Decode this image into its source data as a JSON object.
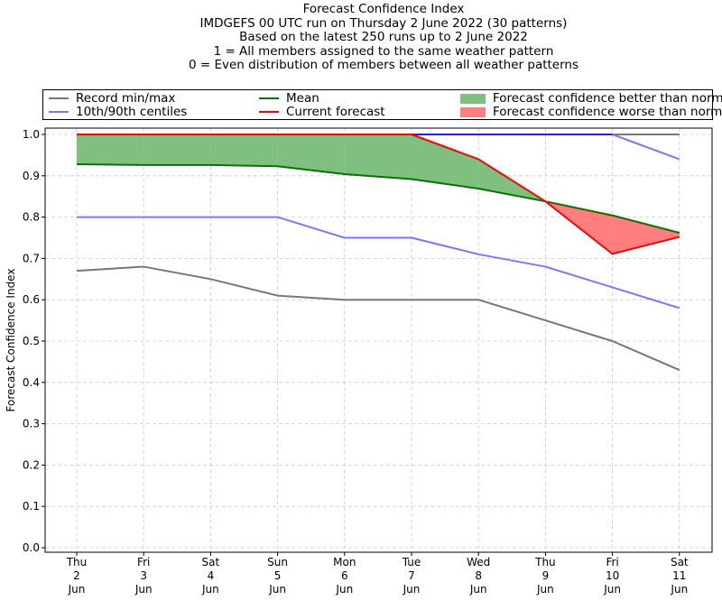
{
  "chart_data": {
    "type": "line",
    "title_lines": [
      "Forecast Confidence Index",
      "IMDGEFS 00 UTC run on Thursday 2 June 2022 (30 patterns)",
      "Based on the latest 250 runs up to 2 June 2022",
      "1 = All members assigned to the same weather pattern",
      "0 = Even distribution of members between all weather patterns"
    ],
    "ylabel": "Forecast Confidence Index",
    "ylim": [
      0,
      1
    ],
    "yticks": [
      "0.0",
      "0.1",
      "0.2",
      "0.3",
      "0.4",
      "0.5",
      "0.6",
      "0.7",
      "0.8",
      "0.9",
      "1.0"
    ],
    "grid": true,
    "legend_position": "top",
    "categories": [
      [
        "Thu",
        "2",
        "Jun"
      ],
      [
        "Fri",
        "3",
        "Jun"
      ],
      [
        "Sat",
        "4",
        "Jun"
      ],
      [
        "Sun",
        "5",
        "Jun"
      ],
      [
        "Mon",
        "6",
        "Jun"
      ],
      [
        "Tue",
        "7",
        "Jun"
      ],
      [
        "Wed",
        "8",
        "Jun"
      ],
      [
        "Thu",
        "9",
        "Jun"
      ],
      [
        "Fri",
        "10",
        "Jun"
      ],
      [
        "Sat",
        "11",
        "Jun"
      ]
    ],
    "series": {
      "record_min": [
        0.67,
        0.68,
        0.65,
        0.61,
        0.6,
        0.6,
        0.6,
        0.55,
        0.5,
        0.43
      ],
      "record_max": [
        1.0,
        1.0,
        1.0,
        1.0,
        1.0,
        1.0,
        1.0,
        1.0,
        1.0,
        1.0
      ],
      "centile_10": [
        0.8,
        0.8,
        0.8,
        0.8,
        0.75,
        0.75,
        0.71,
        0.68,
        0.63,
        0.58
      ],
      "centile_90": [
        1.0,
        1.0,
        1.0,
        1.0,
        1.0,
        1.0,
        1.0,
        1.0,
        1.0,
        0.94
      ],
      "mean": [
        0.928,
        0.926,
        0.926,
        0.923,
        0.904,
        0.892,
        0.869,
        0.838,
        0.804,
        0.762
      ],
      "current": [
        1.0,
        1.0,
        1.0,
        1.0,
        1.0,
        1.0,
        0.94,
        0.838,
        0.711,
        0.752
      ]
    },
    "legend": {
      "record": "Record min/max",
      "centiles": "10th/90th centiles",
      "mean": "Mean",
      "current": "Current forecast",
      "better": "Forecast confidence better than normal",
      "worse": "Forecast confidence worse than normal"
    },
    "colors": {
      "record": "#777777",
      "centile": "#7777ff",
      "centile_top": "#2222dd",
      "mean": "#007700",
      "current": "#ff0000",
      "better_fill": "#7fbf7f",
      "worse_fill": "#ff7f7f",
      "grid": "#cccccc"
    }
  }
}
